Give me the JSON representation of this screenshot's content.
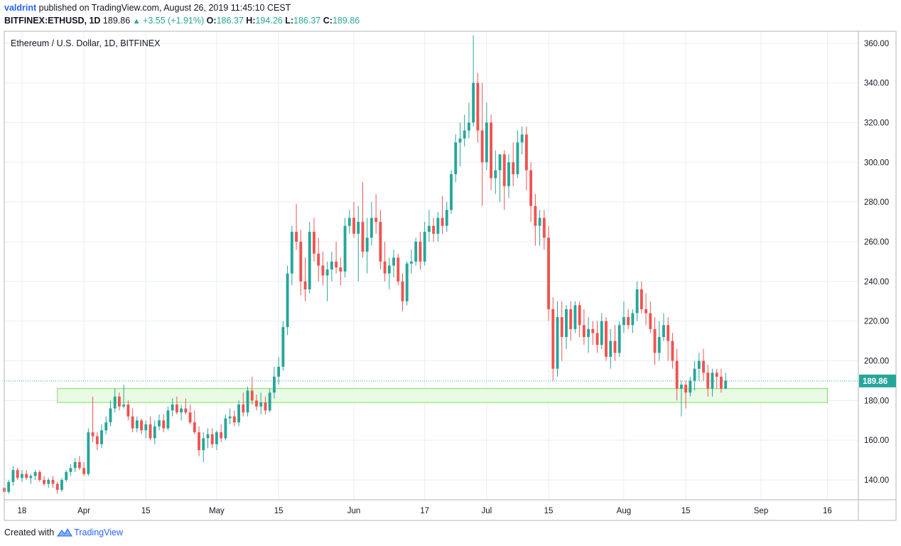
{
  "header": {
    "author": "valdrint",
    "published_text": "published on TradingView.com, August 26, 2019 11:45:10 CEST",
    "symbol": "BITFINEX:ETHUSD, 1D",
    "last": "189.86",
    "change": "+3.55 (+1.91%)",
    "o_label": "O:",
    "o": "186.37",
    "h_label": "H:",
    "h": "194.26",
    "l_label": "L:",
    "l": "186.37",
    "c_label": "C:",
    "c": "189.86"
  },
  "footer": {
    "created_with": "Created with",
    "brand": "TradingView"
  },
  "colors": {
    "up": "#26a69a",
    "down": "#ef5350",
    "grid": "#e8eef6",
    "zone_fill": "#e9fbe4",
    "zone_stroke": "#7ddc6a",
    "price_line": "#26a69a",
    "price_tag": "#26a69a"
  },
  "chart_data": {
    "type": "candlestick",
    "title": "Ethereum / U.S. Dollar, 1D, BITFINEX",
    "current_price": 189.86,
    "current_price_label": "189.86",
    "ylim": [
      130,
      366
    ],
    "y_ticks": [
      140,
      160,
      180,
      200,
      220,
      240,
      260,
      280,
      300,
      320,
      340,
      360
    ],
    "y_tick_labels": [
      "140.00",
      "160.00",
      "180.00",
      "200.00",
      "220.00",
      "240.00",
      "260.00",
      "280.00",
      "300.00",
      "320.00",
      "340.00",
      "360.00"
    ],
    "x_start": "2019-03-14",
    "x_end": "2019-09-23",
    "x_ticks": [
      {
        "date": "2019-03-18",
        "label": "18"
      },
      {
        "date": "2019-04-01",
        "label": "Apr"
      },
      {
        "date": "2019-04-15",
        "label": "15"
      },
      {
        "date": "2019-05-01",
        "label": "May"
      },
      {
        "date": "2019-05-15",
        "label": "15"
      },
      {
        "date": "2019-06-01",
        "label": "Jun"
      },
      {
        "date": "2019-06-17",
        "label": "17"
      },
      {
        "date": "2019-07-01",
        "label": "Jul"
      },
      {
        "date": "2019-07-15",
        "label": "15"
      },
      {
        "date": "2019-08-01",
        "label": "Aug"
      },
      {
        "date": "2019-08-15",
        "label": "15"
      },
      {
        "date": "2019-09-01",
        "label": "Sep"
      },
      {
        "date": "2019-09-16",
        "label": "16"
      }
    ],
    "support_zone": {
      "from_date": "2019-03-26",
      "to_date": "2019-09-16",
      "low": 179,
      "high": 186
    },
    "first_date": "2019-03-14",
    "candles": [
      [
        136,
        138,
        132,
        134
      ],
      [
        134,
        140,
        133,
        139
      ],
      [
        139,
        147,
        137,
        145
      ],
      [
        145,
        146,
        140,
        141
      ],
      [
        141,
        145,
        139,
        143
      ],
      [
        143,
        145,
        140,
        141
      ],
      [
        141,
        143,
        138,
        142
      ],
      [
        142,
        145,
        140,
        144
      ],
      [
        144,
        145,
        139,
        140
      ],
      [
        140,
        142,
        137,
        138
      ],
      [
        138,
        141,
        136,
        140
      ],
      [
        140,
        142,
        136,
        138
      ],
      [
        138,
        139,
        133,
        135
      ],
      [
        135,
        141,
        134,
        140
      ],
      [
        140,
        145,
        139,
        144
      ],
      [
        144,
        148,
        142,
        146
      ],
      [
        146,
        151,
        144,
        149
      ],
      [
        149,
        152,
        145,
        146
      ],
      [
        146,
        149,
        142,
        143
      ],
      [
        143,
        166,
        142,
        164
      ],
      [
        164,
        182,
        159,
        162
      ],
      [
        162,
        164,
        155,
        158
      ],
      [
        158,
        168,
        156,
        165
      ],
      [
        165,
        172,
        163,
        169
      ],
      [
        169,
        180,
        167,
        176
      ],
      [
        176,
        186,
        174,
        182
      ],
      [
        182,
        184,
        175,
        177
      ],
      [
        177,
        188,
        176,
        178
      ],
      [
        178,
        180,
        170,
        172
      ],
      [
        172,
        176,
        164,
        166
      ],
      [
        166,
        172,
        164,
        170
      ],
      [
        170,
        171,
        163,
        165
      ],
      [
        165,
        170,
        161,
        168
      ],
      [
        168,
        172,
        160,
        161
      ],
      [
        161,
        170,
        158,
        167
      ],
      [
        167,
        173,
        165,
        170
      ],
      [
        170,
        173,
        164,
        166
      ],
      [
        166,
        177,
        165,
        175
      ],
      [
        175,
        181,
        172,
        178
      ],
      [
        178,
        182,
        173,
        174
      ],
      [
        174,
        178,
        170,
        176
      ],
      [
        176,
        181,
        173,
        174
      ],
      [
        174,
        178,
        168,
        169
      ],
      [
        169,
        175,
        163,
        164
      ],
      [
        164,
        167,
        152,
        155
      ],
      [
        155,
        164,
        149,
        161
      ],
      [
        161,
        166,
        156,
        163
      ],
      [
        163,
        166,
        156,
        158
      ],
      [
        158,
        165,
        155,
        164
      ],
      [
        164,
        168,
        159,
        161
      ],
      [
        161,
        173,
        160,
        171
      ],
      [
        171,
        176,
        168,
        172
      ],
      [
        172,
        175,
        167,
        169
      ],
      [
        169,
        180,
        167,
        178
      ],
      [
        178,
        184,
        172,
        174
      ],
      [
        174,
        187,
        172,
        185
      ],
      [
        185,
        192,
        178,
        180
      ],
      [
        180,
        183,
        175,
        177
      ],
      [
        177,
        184,
        173,
        179
      ],
      [
        179,
        182,
        173,
        175
      ],
      [
        175,
        186,
        174,
        184
      ],
      [
        184,
        197,
        181,
        192
      ],
      [
        192,
        202,
        188,
        197
      ],
      [
        197,
        220,
        195,
        217
      ],
      [
        217,
        248,
        213,
        244
      ],
      [
        244,
        268,
        238,
        265
      ],
      [
        265,
        279,
        256,
        260
      ],
      [
        260,
        266,
        233,
        240
      ],
      [
        240,
        252,
        230,
        236
      ],
      [
        236,
        270,
        234,
        265
      ],
      [
        265,
        272,
        250,
        254
      ],
      [
        254,
        262,
        240,
        248
      ],
      [
        248,
        255,
        238,
        243
      ],
      [
        243,
        250,
        230,
        246
      ],
      [
        246,
        255,
        240,
        250
      ],
      [
        250,
        260,
        244,
        247
      ],
      [
        247,
        252,
        238,
        245
      ],
      [
        245,
        272,
        242,
        268
      ],
      [
        268,
        276,
        264,
        272
      ],
      [
        272,
        280,
        262,
        264
      ],
      [
        264,
        278,
        240,
        270
      ],
      [
        270,
        290,
        252,
        255
      ],
      [
        255,
        272,
        244,
        262
      ],
      [
        262,
        280,
        258,
        272
      ],
      [
        272,
        284,
        264,
        270
      ],
      [
        270,
        276,
        246,
        250
      ],
      [
        250,
        260,
        240,
        244
      ],
      [
        244,
        252,
        236,
        248
      ],
      [
        248,
        256,
        242,
        252
      ],
      [
        252,
        254,
        238,
        240
      ],
      [
        240,
        244,
        225,
        230
      ],
      [
        230,
        250,
        228,
        249
      ],
      [
        249,
        256,
        244,
        250
      ],
      [
        250,
        262,
        248,
        260
      ],
      [
        260,
        265,
        246,
        250
      ],
      [
        250,
        270,
        248,
        265
      ],
      [
        265,
        276,
        260,
        268
      ],
      [
        268,
        272,
        260,
        264
      ],
      [
        264,
        275,
        260,
        272
      ],
      [
        272,
        283,
        264,
        268
      ],
      [
        268,
        280,
        265,
        276
      ],
      [
        276,
        296,
        274,
        294
      ],
      [
        294,
        314,
        290,
        310
      ],
      [
        310,
        320,
        298,
        312
      ],
      [
        312,
        324,
        308,
        316
      ],
      [
        316,
        330,
        312,
        320
      ],
      [
        320,
        364,
        318,
        340
      ],
      [
        340,
        345,
        310,
        316
      ],
      [
        316,
        340,
        278,
        300
      ],
      [
        300,
        330,
        296,
        320
      ],
      [
        320,
        324,
        286,
        292
      ],
      [
        292,
        306,
        284,
        296
      ],
      [
        296,
        302,
        280,
        304
      ],
      [
        304,
        306,
        276,
        288
      ],
      [
        288,
        304,
        282,
        300
      ],
      [
        300,
        310,
        288,
        294
      ],
      [
        294,
        316,
        292,
        310
      ],
      [
        310,
        318,
        304,
        314
      ],
      [
        314,
        318,
        286,
        296
      ],
      [
        296,
        300,
        270,
        278
      ],
      [
        278,
        284,
        258,
        268
      ],
      [
        268,
        276,
        258,
        272
      ],
      [
        272,
        276,
        256,
        262
      ],
      [
        262,
        268,
        220,
        226
      ],
      [
        226,
        232,
        190,
        196
      ],
      [
        196,
        230,
        192,
        222
      ],
      [
        222,
        230,
        200,
        212
      ],
      [
        212,
        228,
        206,
        226
      ],
      [
        226,
        230,
        210,
        216
      ],
      [
        216,
        230,
        214,
        228
      ],
      [
        228,
        230,
        212,
        218
      ],
      [
        218,
        226,
        208,
        212
      ],
      [
        212,
        222,
        204,
        216
      ],
      [
        216,
        220,
        208,
        214
      ],
      [
        214,
        220,
        204,
        208
      ],
      [
        208,
        224,
        206,
        220
      ],
      [
        220,
        222,
        200,
        202
      ],
      [
        202,
        216,
        196,
        210
      ],
      [
        210,
        218,
        200,
        204
      ],
      [
        204,
        220,
        202,
        218
      ],
      [
        218,
        230,
        214,
        222
      ],
      [
        222,
        226,
        216,
        218
      ],
      [
        218,
        226,
        214,
        224
      ],
      [
        224,
        240,
        220,
        236
      ],
      [
        236,
        240,
        224,
        226
      ],
      [
        226,
        234,
        218,
        224
      ],
      [
        224,
        230,
        214,
        216
      ],
      [
        216,
        222,
        198,
        204
      ],
      [
        204,
        220,
        200,
        212
      ],
      [
        212,
        224,
        210,
        218
      ],
      [
        218,
        222,
        200,
        210
      ],
      [
        210,
        214,
        196,
        200
      ],
      [
        200,
        206,
        180,
        186
      ],
      [
        186,
        190,
        172,
        188
      ],
      [
        188,
        190,
        176,
        184
      ],
      [
        184,
        192,
        182,
        190
      ],
      [
        190,
        200,
        185,
        196
      ],
      [
        196,
        204,
        190,
        200
      ],
      [
        200,
        206,
        190,
        194
      ],
      [
        194,
        198,
        182,
        186
      ],
      [
        186,
        196,
        182,
        194
      ],
      [
        194,
        196,
        186,
        192
      ],
      [
        192,
        196,
        184,
        186
      ],
      [
        186,
        194,
        186,
        190
      ]
    ]
  }
}
